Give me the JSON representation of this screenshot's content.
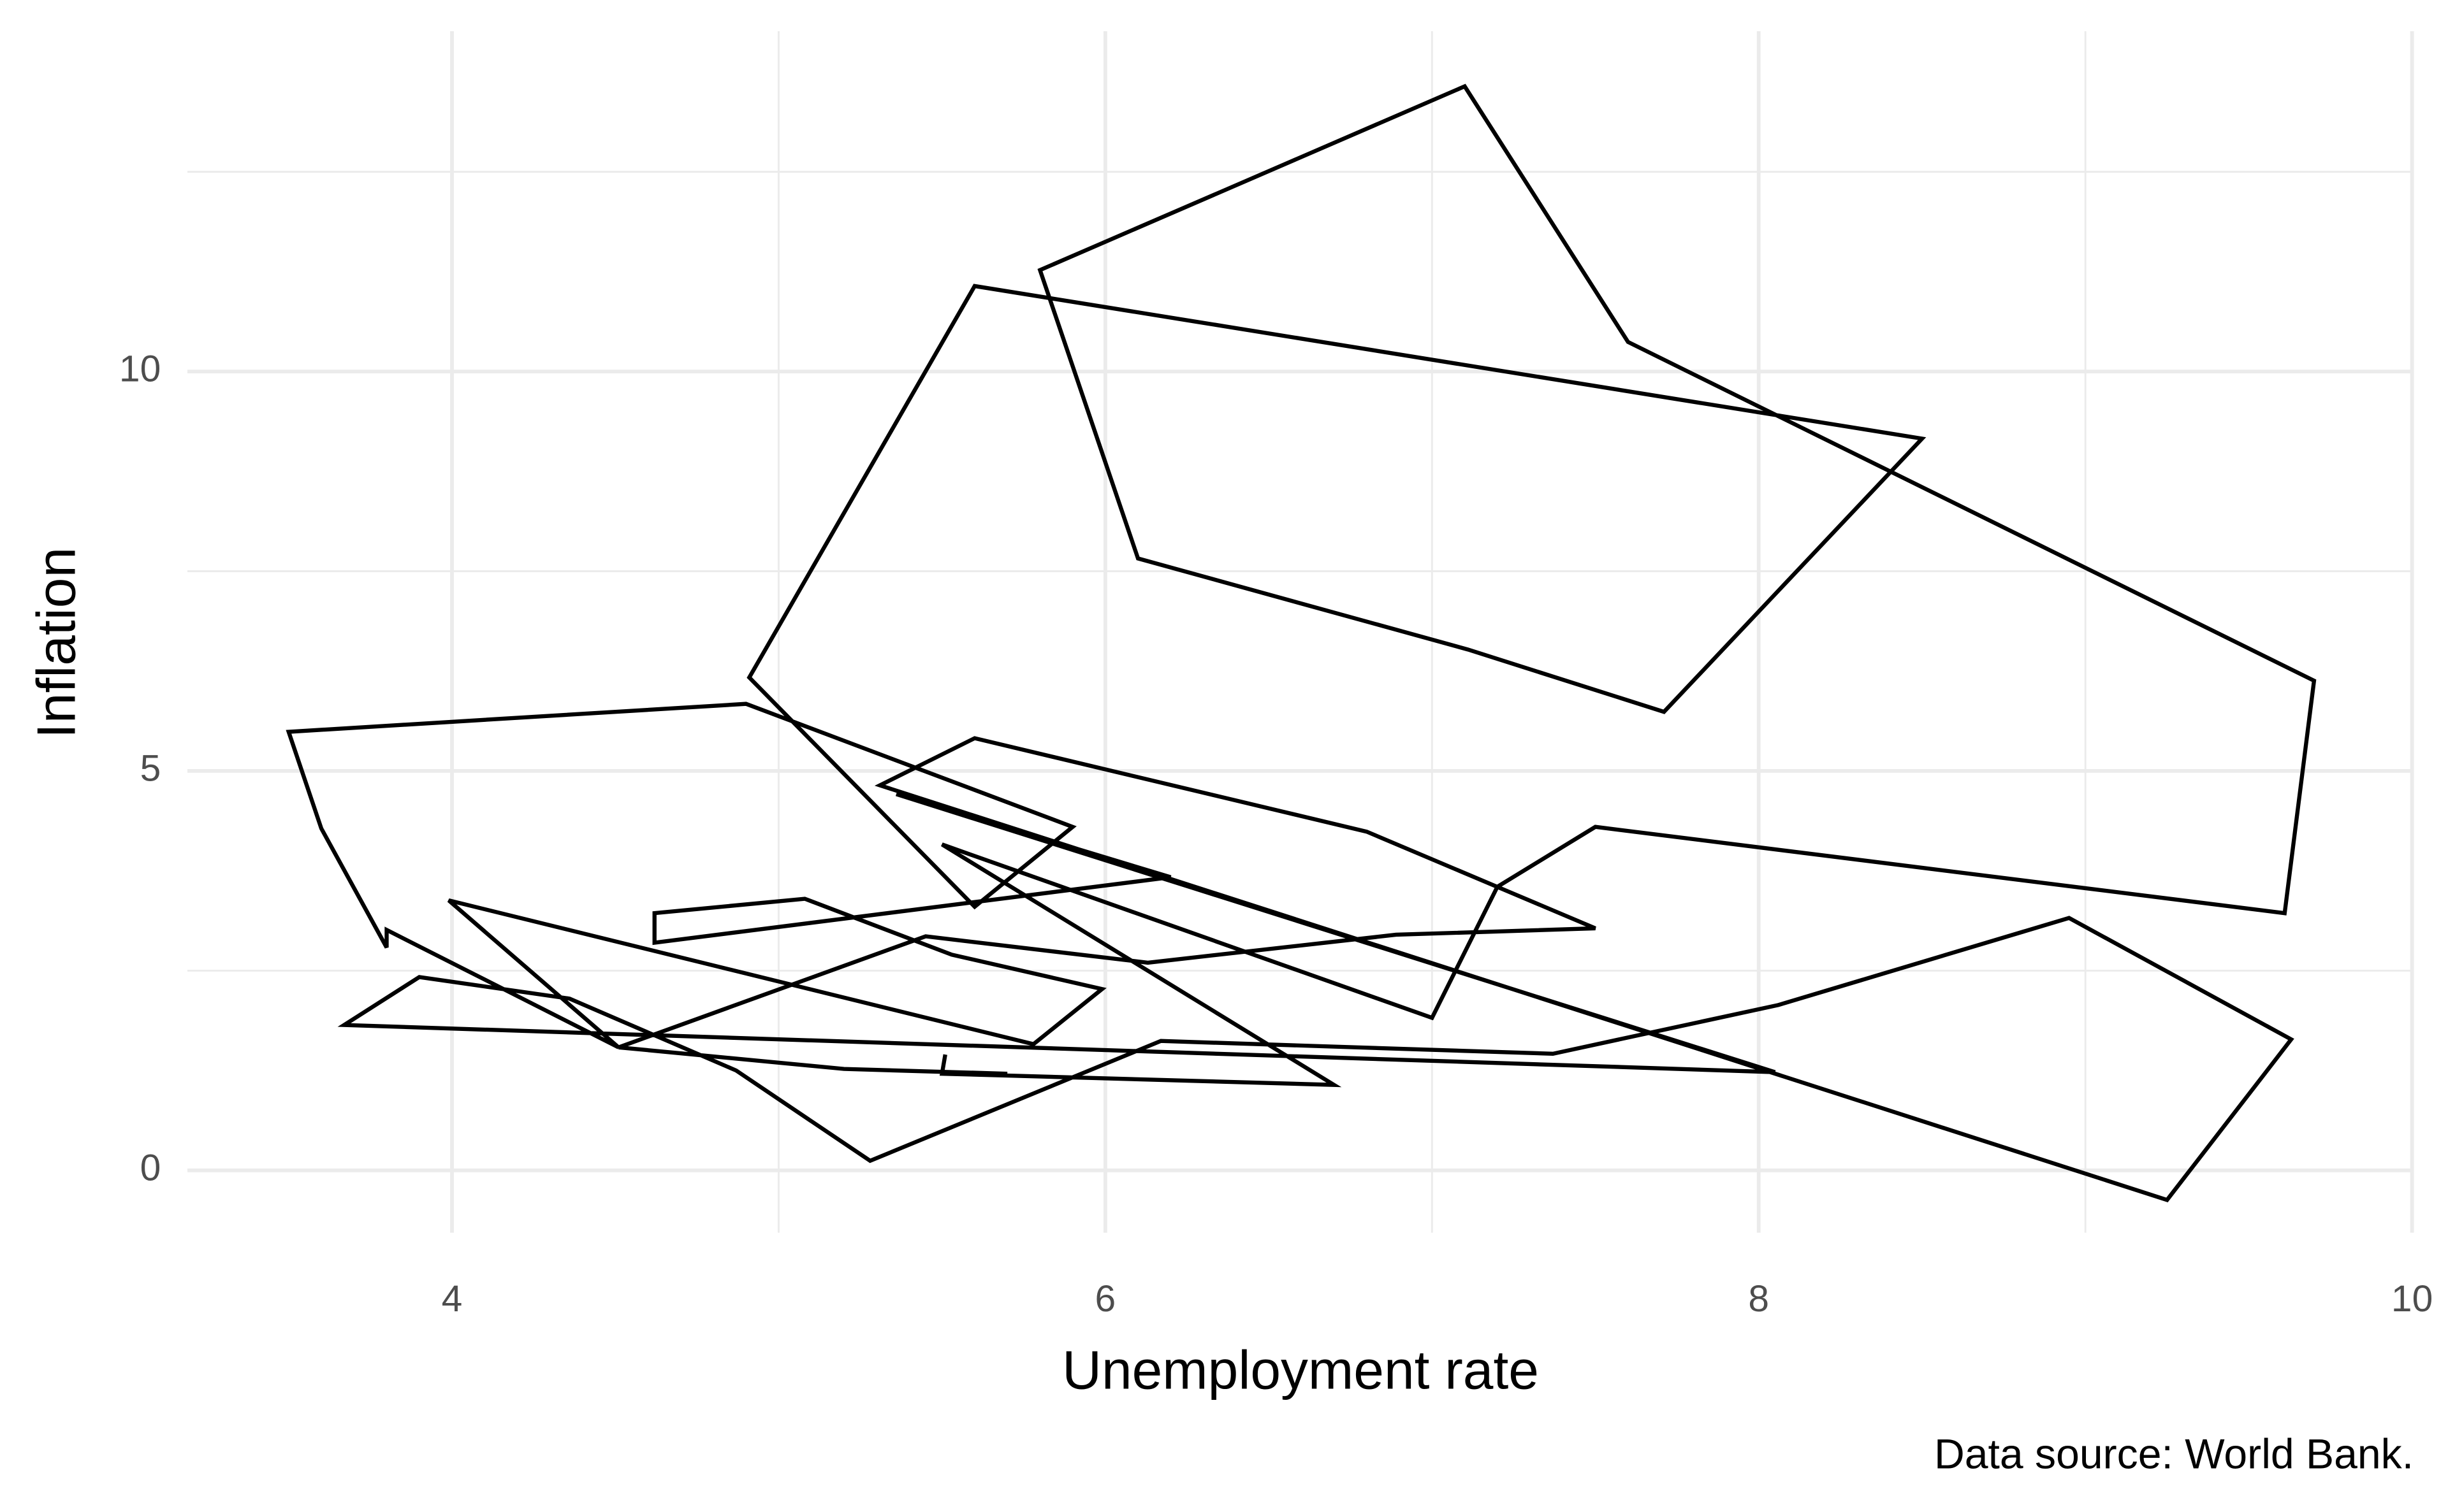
{
  "chart_data": {
    "type": "line",
    "x_label": "Unemployment rate",
    "y_label": "Inflation",
    "caption": "Data source: World Bank.",
    "x": [
      5.7,
      5.2,
      4.51,
      5.45,
      6.13,
      6.89,
      7.5,
      6.8,
      5.6,
      5.31,
      9.25,
      9.63,
      8.95,
      8.06,
      7.37,
      6.17,
      5.28,
      4.87,
      4.36,
      3.9,
      3.67,
      8.05,
      5.36,
      6.2,
      4.62,
      4.62,
      5.08,
      5.53,
      5.99,
      5.78,
      3.99,
      4.51,
      3.8,
      3.8,
      3.6,
      3.5,
      4.9,
      5.9,
      5.6,
      4.91,
      5.6,
      8.5,
      7.71,
      7.11,
      6.1,
      5.8,
      7.1,
      7.6,
      9.7,
      9.61,
      7.5,
      7.2,
      7.0,
      5.5,
      6.7,
      5.5,
      5.51
    ],
    "y": [
      1.21,
      1.27,
      1.54,
      2.93,
      2.6,
      2.95,
      3.03,
      4.24,
      5.41,
      4.82,
      -0.37,
      1.64,
      3.16,
      2.07,
      1.46,
      1.62,
      0.12,
      1.25,
      2.15,
      2.42,
      1.82,
      1.23,
      4.71,
      3.67,
      2.85,
      3.22,
      3.4,
      2.7,
      2.27,
      1.58,
      3.38,
      1.54,
      3.01,
      2.79,
      4.28,
      5.49,
      5.84,
      4.3,
      3.3,
      6.17,
      11.07,
      9.16,
      5.74,
      6.52,
      7.66,
      11.27,
      13.57,
      10.37,
      6.13,
      3.22,
      4.3,
      3.55,
      1.91,
      4.08,
      1.07,
      1.21,
      1.45
    ],
    "color": "#000000",
    "xlim": [
      3.19,
      10.0
    ],
    "xticks": [
      4,
      6,
      8,
      10
    ],
    "ylim": [
      -0.78,
      14.26
    ],
    "yticks": [
      0,
      5,
      10
    ],
    "grid": true
  }
}
